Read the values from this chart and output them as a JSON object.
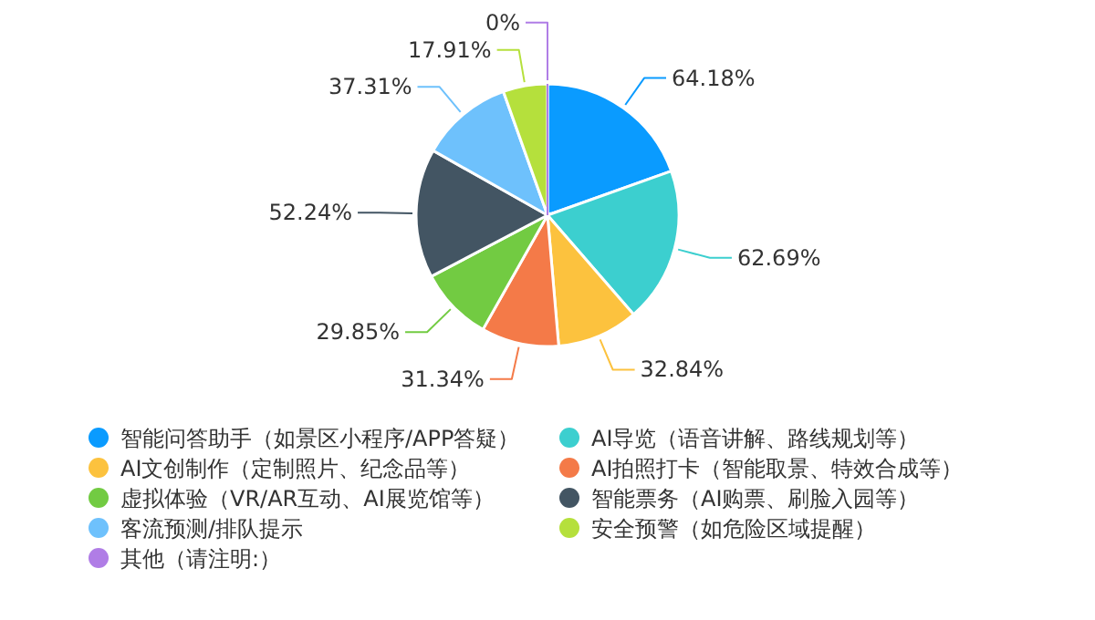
{
  "chart_data": {
    "type": "pie",
    "categories": [
      "智能问答助手（如景区小程序/APP答疑）",
      "AI导览（语音讲解、路线规划等）",
      "AI文创制作（定制照片、纪念品等）",
      "AI拍照打卡（智能取景、特效合成等）",
      "虚拟体验（VR/AR互动、AI展览馆等）",
      "智能票务（AI购票、刷脸入园等）",
      "客流预测/排队提示",
      "安全预警（如危险区域提醒）",
      "其他（请注明:）"
    ],
    "values": [
      64.18,
      62.69,
      32.84,
      31.34,
      29.85,
      52.24,
      37.31,
      17.91,
      0
    ],
    "colors": [
      "#0a9bff",
      "#3ccfcf",
      "#fcc23e",
      "#f47a48",
      "#72cb42",
      "#435563",
      "#6ec1fc",
      "#b5e03c",
      "#b07de6"
    ],
    "value_labels": [
      "64.18%",
      "62.69%",
      "32.84%",
      "31.34%",
      "29.85%",
      "52.24%",
      "37.31%",
      "17.91%",
      "0%"
    ],
    "legend": "bottom"
  }
}
